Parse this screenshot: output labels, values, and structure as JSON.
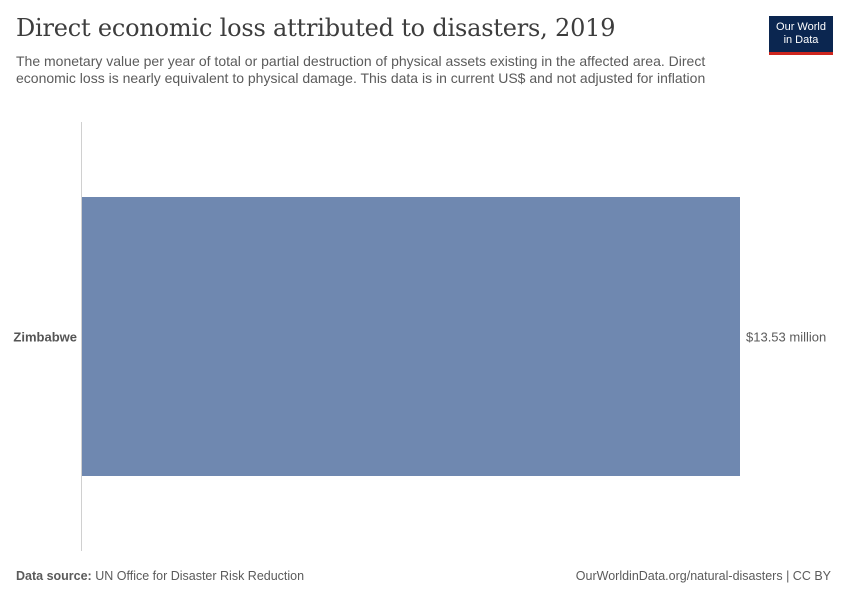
{
  "header": {
    "title": "Direct economic loss attributed to disasters, 2019",
    "subtitle": "The monetary value per year of total or partial destruction of physical assets existing in the affected area. Direct economic loss is nearly equivalent to physical damage. This data is in current US$ and not adjusted for inflation"
  },
  "logo": {
    "line1": "Our World",
    "line2": "in Data",
    "bg_color": "#0b2650",
    "accent_color": "#ce261e"
  },
  "chart_data": {
    "type": "bar",
    "orientation": "horizontal",
    "title": "Direct economic loss attributed to disasters, 2019",
    "categories": [
      "Zimbabwe"
    ],
    "values": [
      13.53
    ],
    "value_unit": "million US$",
    "value_labels": [
      "$13.53 million"
    ],
    "xlim": [
      0,
      13.53
    ],
    "bar_color": "#6f88b0",
    "axis_color": "#d0d0d0"
  },
  "footer": {
    "source_label": "Data source:",
    "source_text": "UN Office for Disaster Risk Reduction",
    "url_text": "OurWorldinData.org/natural-disasters | CC BY"
  }
}
